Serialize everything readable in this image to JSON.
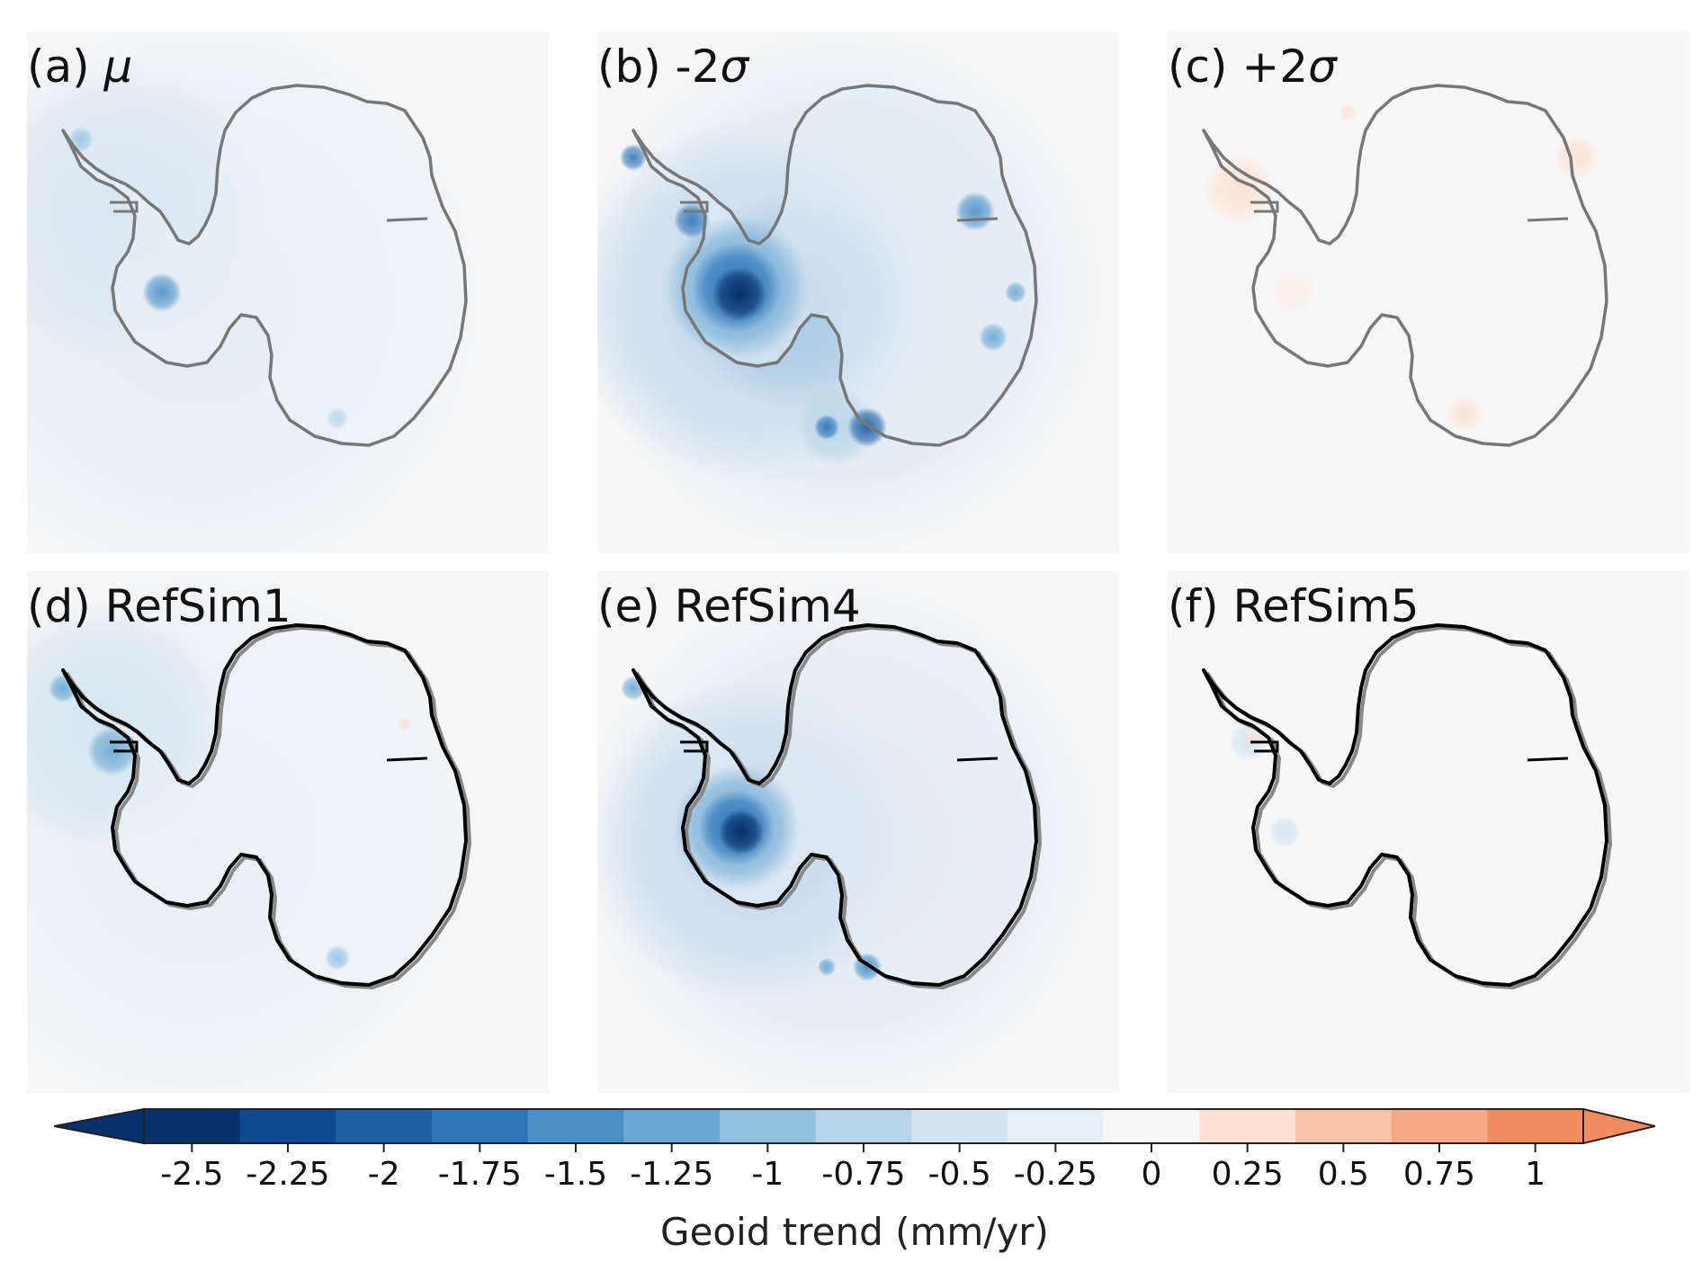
{
  "panels": [
    {
      "id": "a",
      "label": "(a) ",
      "symbol": "μ",
      "style": "mean"
    },
    {
      "id": "b",
      "label": "(b) -2",
      "symbol": "σ",
      "style": "minus2"
    },
    {
      "id": "c",
      "label": "(c) +2",
      "symbol": "σ",
      "style": "plus2"
    },
    {
      "id": "d",
      "label": "(d) RefSim1",
      "symbol": "",
      "style": "refsim1"
    },
    {
      "id": "e",
      "label": "(e) RefSim4",
      "symbol": "",
      "style": "refsim4"
    },
    {
      "id": "f",
      "label": "(f) RefSim5",
      "symbol": "",
      "style": "refsim5"
    }
  ],
  "colorbar": {
    "label": "Geoid trend (mm/yr)",
    "ticks": [
      "-2.5",
      "-2.25",
      "-2",
      "-1.75",
      "-1.5",
      "-1.25",
      "-1",
      "-0.75",
      "-0.5",
      "-0.25",
      "0",
      "0.25",
      "0.5",
      "0.75",
      "1"
    ],
    "bin_colors": [
      "#08306b",
      "#0d4a8f",
      "#1f5fa6",
      "#2f74b8",
      "#4a8fc6",
      "#6aa7d3",
      "#93c1e0",
      "#b7d5ea",
      "#d3e4f1",
      "#e8f0f7",
      "#f7f7f7",
      "#fde1d3",
      "#fbc4a8",
      "#f7a885",
      "#f28c61"
    ],
    "extend": "both"
  }
}
